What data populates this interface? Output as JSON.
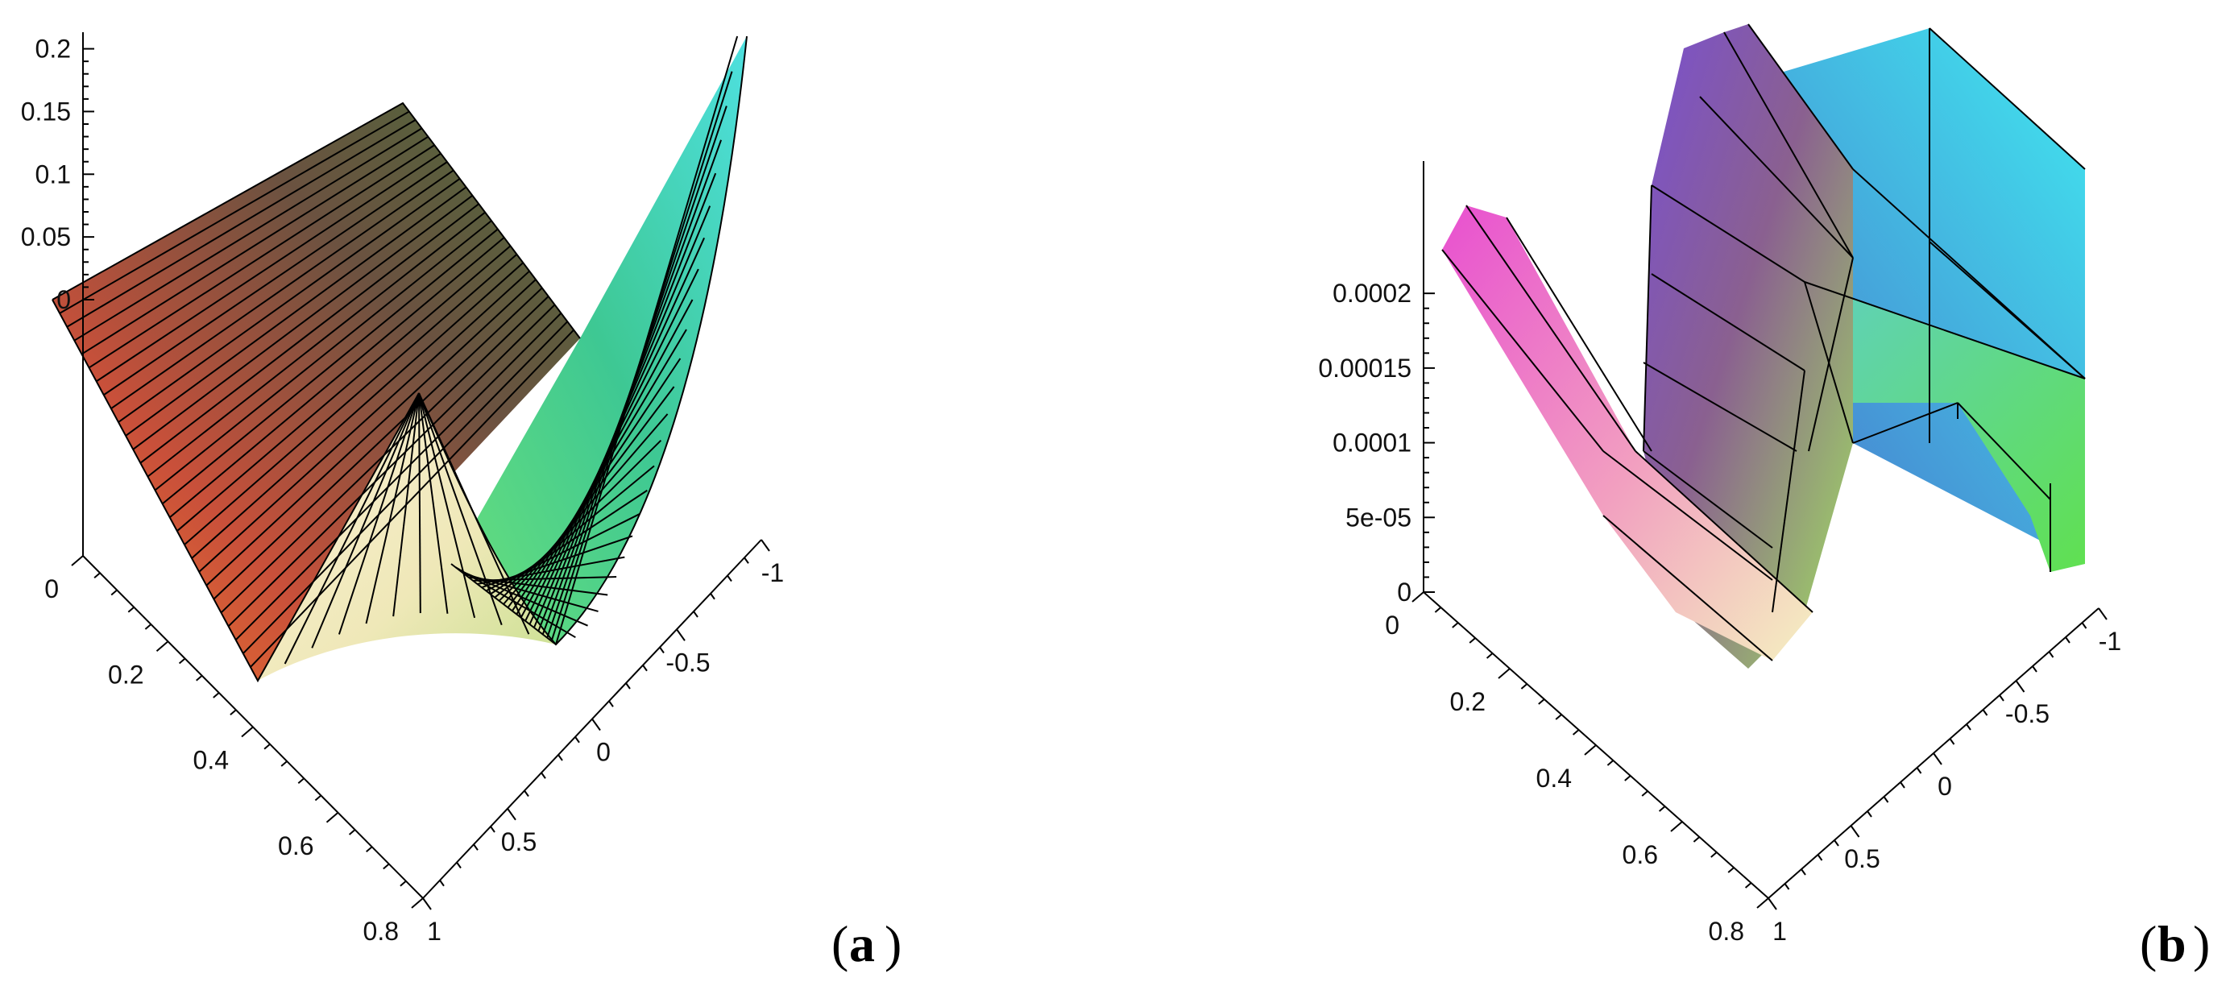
{
  "chart_data": [
    {
      "type": "surface",
      "panel_label": "a",
      "z_axis": {
        "ticks": [
          "0",
          "0.05",
          "0.1",
          "0.15",
          "0.2"
        ],
        "range": [
          0,
          0.21
        ]
      },
      "x_axis": {
        "ticks": [
          "0",
          "0.2",
          "0.4",
          "0.6",
          "0.8"
        ],
        "range": [
          0,
          0.8
        ]
      },
      "y_axis": {
        "ticks": [
          "-1",
          "-0.5",
          "0",
          "0.5",
          "1"
        ],
        "range": [
          -1,
          1
        ]
      },
      "surface_shape": "flat plane rising linearly toward a ridge at z≈0.15, trough near y≈0 with parabolic rise to z≈0.21 at y=-1",
      "colors": [
        "#e8442a",
        "#5c4a3a",
        "#f7f0c8",
        "#3ddc9a",
        "#40e0e8"
      ]
    },
    {
      "type": "surface",
      "panel_label": "b",
      "z_axis": {
        "ticks": [
          "0",
          "5e-05",
          "0.0001",
          "0.00015",
          "0.0002"
        ],
        "range": [
          0,
          0.00024
        ]
      },
      "x_axis": {
        "ticks": [
          "0",
          "0.2",
          "0.4",
          "0.6",
          "0.8"
        ],
        "range": [
          0,
          0.8
        ]
      },
      "y_axis": {
        "ticks": [
          "-1",
          "-0.5",
          "0",
          "0.5",
          "1"
        ],
        "range": [
          -1,
          1
        ]
      },
      "surface_shape": "stepped surface with ridges, rising to about 0.0002 at x=0",
      "colors": [
        "#f26ad8",
        "#8a4fd8",
        "#f7f0c8",
        "#6ae86a",
        "#40e0f0"
      ]
    }
  ]
}
